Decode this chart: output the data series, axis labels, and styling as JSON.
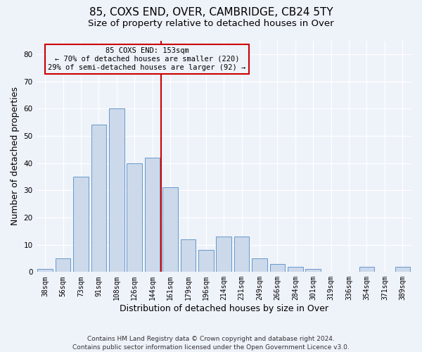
{
  "title": "85, COXS END, OVER, CAMBRIDGE, CB24 5TY",
  "subtitle": "Size of property relative to detached houses in Over",
  "xlabel": "Distribution of detached houses by size in Over",
  "ylabel": "Number of detached properties",
  "categories": [
    "38sqm",
    "56sqm",
    "73sqm",
    "91sqm",
    "108sqm",
    "126sqm",
    "144sqm",
    "161sqm",
    "179sqm",
    "196sqm",
    "214sqm",
    "231sqm",
    "249sqm",
    "266sqm",
    "284sqm",
    "301sqm",
    "319sqm",
    "336sqm",
    "354sqm",
    "371sqm",
    "389sqm"
  ],
  "values": [
    1,
    5,
    35,
    54,
    60,
    40,
    42,
    31,
    12,
    8,
    13,
    13,
    5,
    3,
    2,
    1,
    0,
    0,
    2,
    0,
    2
  ],
  "bar_color": "#ccd9ea",
  "bar_edge_color": "#6699cc",
  "vline_index": 7,
  "vline_color": "#cc0000",
  "annotation_line1": "85 COXS END: 153sqm",
  "annotation_line2": "← 70% of detached houses are smaller (220)",
  "annotation_line3": "29% of semi-detached houses are larger (92) →",
  "ylim": [
    0,
    85
  ],
  "yticks": [
    0,
    10,
    20,
    30,
    40,
    50,
    60,
    70,
    80
  ],
  "footer1": "Contains HM Land Registry data © Crown copyright and database right 2024.",
  "footer2": "Contains public sector information licensed under the Open Government Licence v3.0.",
  "background_color": "#eef2f9",
  "grid_color": "#ffffff",
  "title_fontsize": 11,
  "subtitle_fontsize": 9.5,
  "axis_label_fontsize": 9,
  "tick_fontsize": 7,
  "footer_fontsize": 6.5,
  "annotation_fontsize": 7.5
}
